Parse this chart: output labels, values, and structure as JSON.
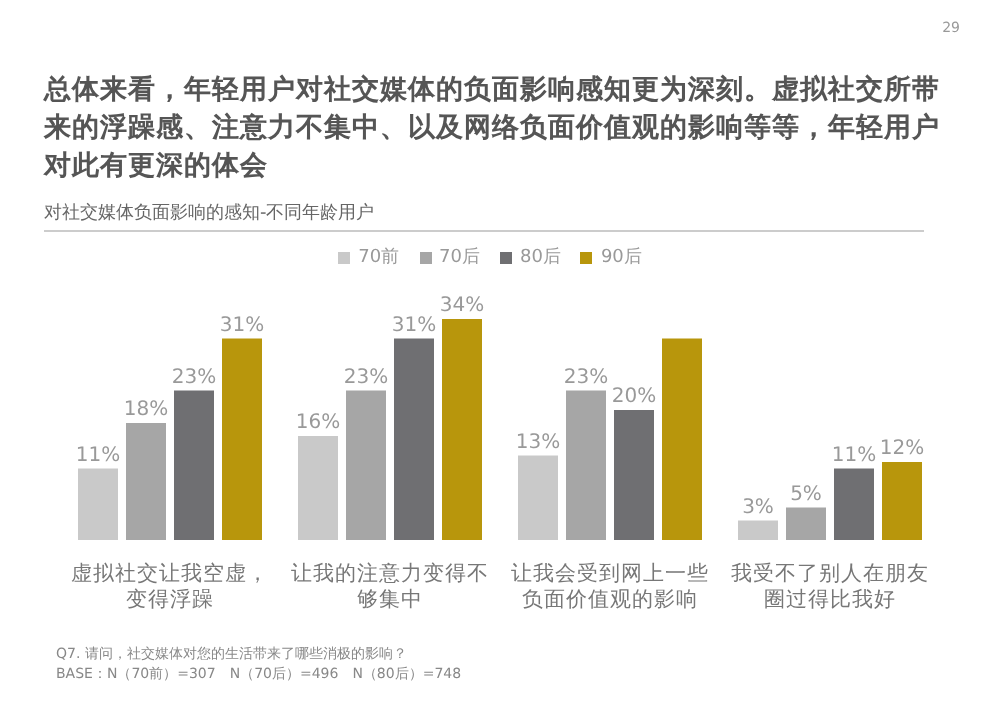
{
  "chart_data": {
    "type": "bar",
    "title": "总体来看，年轻用户对社交媒体的负面影响感知更为深刻。虚拟社交所带来的浮躁感、注意力不集中、以及网络负面价值观的影响等等，年轻用户对此有更深的体会",
    "subtitle": "对社交媒体负面影响的感知-不同年龄用户",
    "categories": [
      "虚拟社交让我空虚，变得浮躁",
      "让我的注意力变得不够集中",
      "让我会受到网上一些负面价值观的影响",
      "我受不了别人在朋友圈过得比我好"
    ],
    "series": [
      {
        "name": "70前",
        "color": "#c9c9c9",
        "values": [
          11,
          16,
          13,
          3
        ],
        "value_labels": [
          "11%",
          "16%",
          "13%",
          "3%"
        ]
      },
      {
        "name": "70后",
        "color": "#a6a6a6",
        "values": [
          18,
          23,
          23,
          5
        ],
        "value_labels": [
          "18%",
          "23%",
          "23%",
          "5%"
        ]
      },
      {
        "name": "80后",
        "color": "#6f6f72",
        "values": [
          23,
          31,
          20,
          11
        ],
        "value_labels": [
          "23%",
          "31%",
          "20%",
          "11%"
        ]
      },
      {
        "name": "90后",
        "color": "#b8960c",
        "values": [
          31,
          34,
          31,
          12
        ],
        "value_labels": [
          "31%",
          "34%",
          null,
          "12%"
        ]
      }
    ],
    "legend": "top",
    "annotations": [
      "29",
      "Q7. 请问，社交媒体对您的生活带来了哪些消极的影响？",
      "BASE：N（70前）=307　N（70后）=496　N（80后）=748"
    ]
  }
}
